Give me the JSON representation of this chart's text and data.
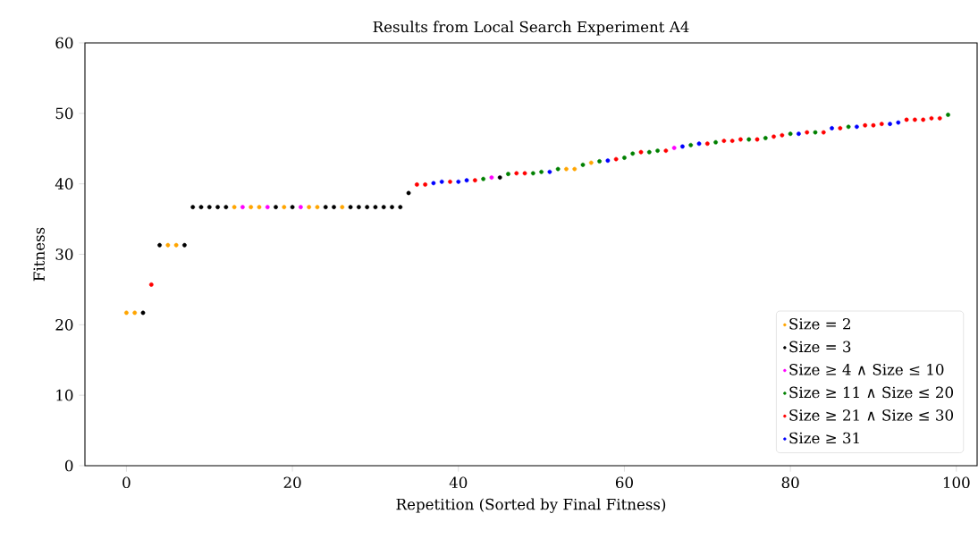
{
  "chart_data": {
    "type": "scatter",
    "title": "Results from Local Search Experiment A4",
    "xlabel": "Repetition (Sorted by Final Fitness)",
    "ylabel": "Fitness",
    "xlim": [
      -5,
      102.5
    ],
    "ylim": [
      0,
      60
    ],
    "xticks": [
      0,
      20,
      40,
      60,
      80,
      100
    ],
    "yticks": [
      0,
      10,
      20,
      30,
      40,
      50,
      60
    ],
    "marker": "circle",
    "grid": false,
    "legend": "bottom right",
    "series": [
      {
        "name": "Size = 2",
        "color": "#ffa500",
        "x": [
          0,
          1,
          5,
          6,
          13,
          15,
          16,
          19,
          22,
          23,
          26,
          53,
          54,
          56
        ],
        "values": [
          21.7,
          21.7,
          31.3,
          31.3,
          36.7,
          36.7,
          36.7,
          36.7,
          36.7,
          36.7,
          36.7,
          42.1,
          42.1,
          43.0
        ]
      },
      {
        "name": "Size = 3",
        "color": "#000000",
        "x": [
          2,
          4,
          7,
          8,
          9,
          10,
          11,
          12,
          18,
          20,
          24,
          25,
          27,
          28,
          29,
          30,
          31,
          32,
          33,
          34,
          45
        ],
        "values": [
          21.7,
          31.3,
          31.3,
          36.7,
          36.7,
          36.7,
          36.7,
          36.7,
          36.7,
          36.7,
          36.7,
          36.7,
          36.7,
          36.7,
          36.7,
          36.7,
          36.7,
          36.7,
          36.7,
          38.7,
          40.9
        ]
      },
      {
        "name": "Size ≥ 4 ∧ Size ≤ 10",
        "color": "#ff00ff",
        "x": [
          14,
          17,
          21,
          44,
          66
        ],
        "values": [
          36.7,
          36.7,
          36.7,
          40.9,
          45.1
        ]
      },
      {
        "name": "Size ≥ 11 ∧ Size ≤ 20",
        "color": "#008000",
        "x": [
          43,
          46,
          49,
          50,
          52,
          55,
          57,
          60,
          61,
          63,
          64,
          68,
          71,
          75,
          77,
          80,
          83,
          87,
          99
        ],
        "values": [
          40.7,
          41.4,
          41.5,
          41.7,
          42.1,
          42.7,
          43.2,
          43.7,
          44.3,
          44.5,
          44.7,
          45.5,
          45.9,
          46.3,
          46.5,
          47.1,
          47.3,
          48.1,
          49.8
        ]
      },
      {
        "name": "Size ≥ 21 ∧ Size ≤ 30",
        "color": "#ff0000",
        "x": [
          3,
          35,
          36,
          39,
          42,
          47,
          48,
          59,
          62,
          65,
          70,
          72,
          73,
          74,
          76,
          78,
          79,
          82,
          84,
          86,
          89,
          90,
          91,
          94,
          95,
          96,
          97,
          98
        ],
        "values": [
          25.7,
          39.9,
          39.9,
          40.3,
          40.5,
          41.5,
          41.5,
          43.5,
          44.5,
          44.7,
          45.7,
          46.1,
          46.1,
          46.3,
          46.3,
          46.7,
          46.9,
          47.3,
          47.3,
          47.9,
          48.3,
          48.3,
          48.5,
          49.1,
          49.1,
          49.1,
          49.3,
          49.3
        ]
      },
      {
        "name": "Size ≥ 31",
        "color": "#0000ff",
        "x": [
          37,
          38,
          40,
          41,
          51,
          58,
          67,
          69,
          81,
          85,
          88,
          92,
          93
        ],
        "values": [
          40.1,
          40.3,
          40.3,
          40.5,
          41.7,
          43.3,
          45.3,
          45.7,
          47.1,
          47.9,
          48.1,
          48.5,
          48.7
        ]
      }
    ]
  }
}
